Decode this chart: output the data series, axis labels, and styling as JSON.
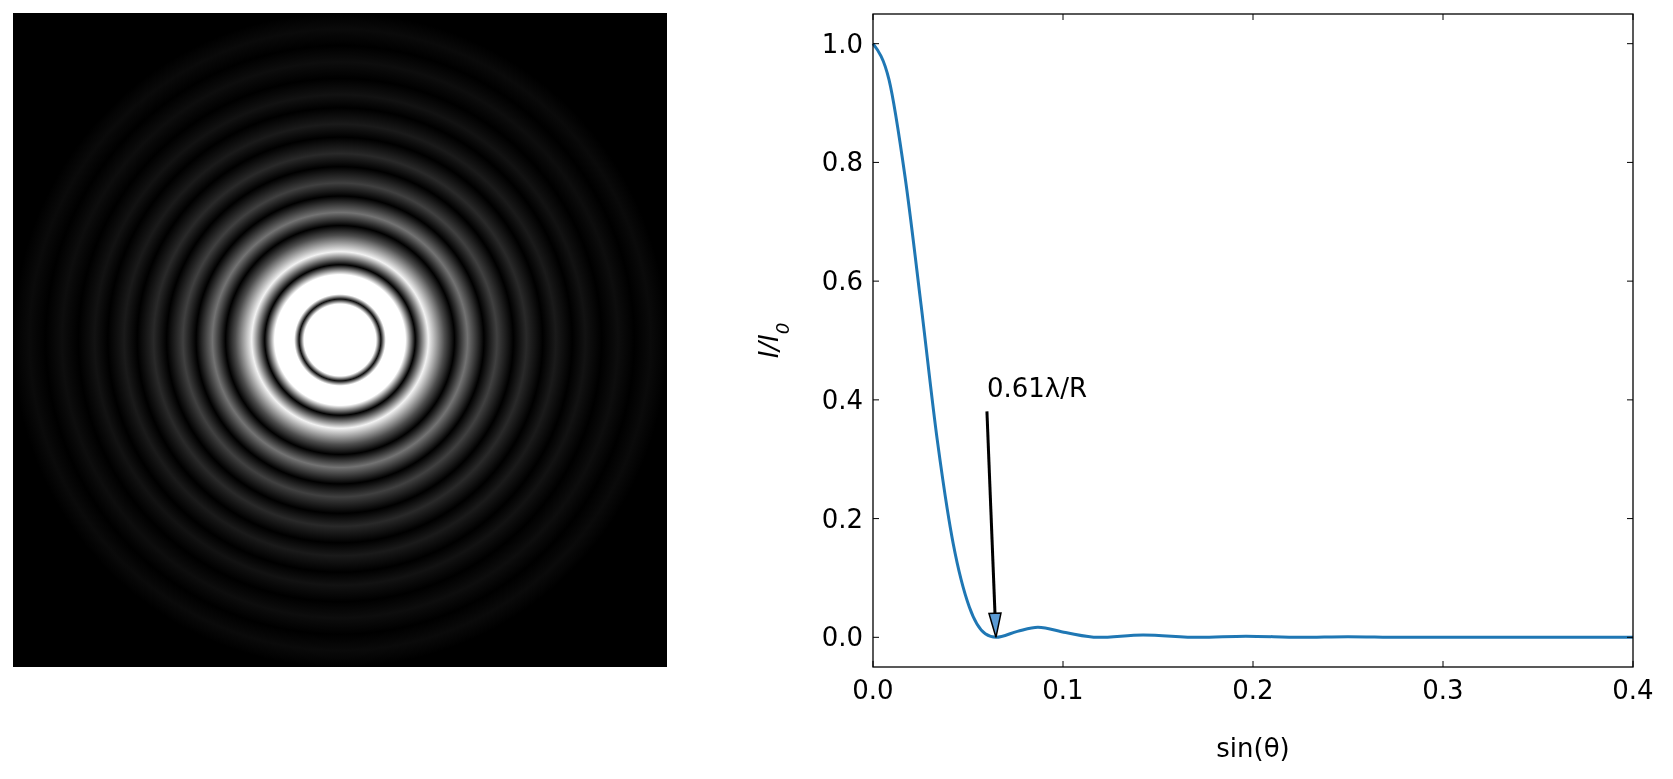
{
  "chart_data": {
    "type": "line",
    "xlabel": "sin(θ)",
    "ylabel": "I/I$_{0}$",
    "x": [
      0,
      0.00845,
      0.0169,
      0.0253,
      0.0338,
      0.0422,
      0.0507,
      0.0591,
      0.0647,
      0.076,
      0.0868,
      0.1014,
      0.1185,
      0.1422,
      0.1718,
      0.1963,
      0.225,
      0.25,
      0.278,
      0.31,
      0.35,
      0.4
    ],
    "series": [
      {
        "color": "#1f77b4",
        "values": [
          1,
          0.939,
          0.775,
          0.56,
          0.333,
          0.158,
          0.051,
          0.006,
          0,
          0.01,
          0.017,
          0.008,
          0,
          0.004,
          0,
          0.002,
          0,
          0.001,
          0,
          0,
          0,
          0
        ]
      }
    ],
    "xlim": [
      0,
      0.4
    ],
    "ylim": [
      -0.05,
      1.05
    ],
    "xticks": [
      {
        "value": 0,
        "label": "0.0"
      },
      0.1,
      0.2,
      0.3,
      0.4
    ],
    "yticks": [
      {
        "value": 0,
        "label": "0.0"
      },
      0.2,
      0.4,
      0.6,
      0.8,
      {
        "value": 1,
        "label": "1.0"
      }
    ],
    "annotations": [
      "0.61λ/R"
    ],
    "grid": false,
    "marker": "none",
    "line_style": "solid"
  }
}
